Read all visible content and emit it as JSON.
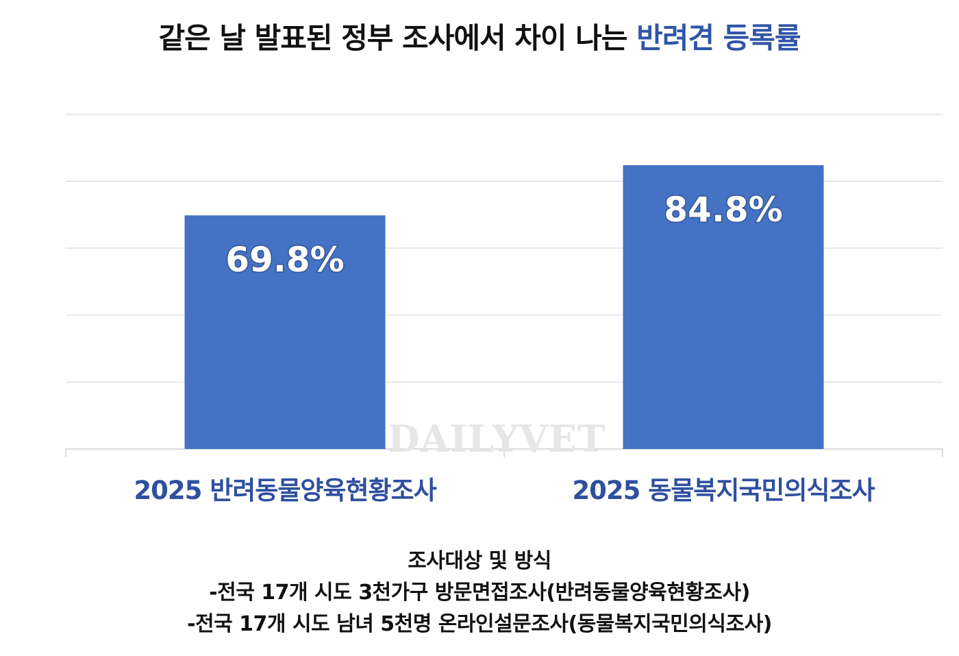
{
  "title": {
    "prefix": "같은 날 발표된 정부 조사에서 차이 나는 ",
    "highlight": "반려견 등록률"
  },
  "watermark": "DAILYVET",
  "chart_data": {
    "type": "bar",
    "categories": [
      "2025 반려동물양육현황조사",
      "2025 동물복지국민의식조사"
    ],
    "values": [
      69.8,
      84.8
    ],
    "value_labels": [
      "69.8%",
      "84.8%"
    ],
    "ylim": [
      0,
      100
    ],
    "grid": true,
    "colors": {
      "bar": "#4472c4",
      "category_label": "#2f4fa0",
      "grid": "#d9d9d9",
      "value_label": "#ffffff"
    }
  },
  "notes": {
    "heading": "조사대상 및 방식",
    "lines": [
      "-전국 17개 시도 3천가구 방문면접조사(반려동물양육현황조사)",
      "-전국 17개 시도 남녀 5천명 온라인설문조사(동물복지국민의식조사)"
    ]
  }
}
